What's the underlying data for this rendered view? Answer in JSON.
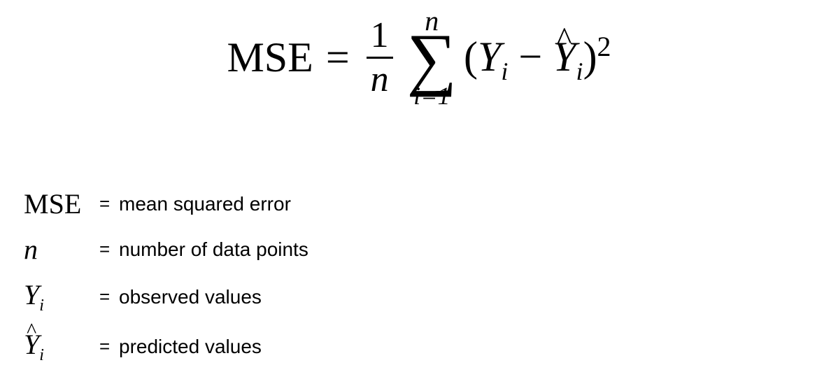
{
  "colors": {
    "text": "#000000",
    "background": "#ffffff"
  },
  "fonts": {
    "serif": "Times New Roman",
    "sans": "Arial"
  },
  "formula": {
    "lhs": "MSE",
    "equals": "=",
    "fraction": {
      "num": "1",
      "den": "n"
    },
    "sum": {
      "upper": "n",
      "sigma": "∑",
      "lower": "i=1"
    },
    "body": {
      "open": "(",
      "Y": "Y",
      "Y_sub": "i",
      "minus": " − ",
      "Yhat": "Y",
      "Yhat_caret": "^",
      "Yhat_sub": "i",
      "close": ")",
      "power": "2"
    }
  },
  "legend": [
    {
      "symbol_html": "MSE",
      "desc": "mean squared error",
      "italic": false,
      "sub": "",
      "hat": false
    },
    {
      "symbol_html": "n",
      "desc": "number of data points",
      "italic": true,
      "sub": "",
      "hat": false
    },
    {
      "symbol_html": "Y",
      "desc": "observed values",
      "italic": true,
      "sub": "i",
      "hat": false
    },
    {
      "symbol_html": "Y",
      "desc": "predicted values",
      "italic": true,
      "sub": "i",
      "hat": true
    }
  ],
  "legend_equals": "="
}
